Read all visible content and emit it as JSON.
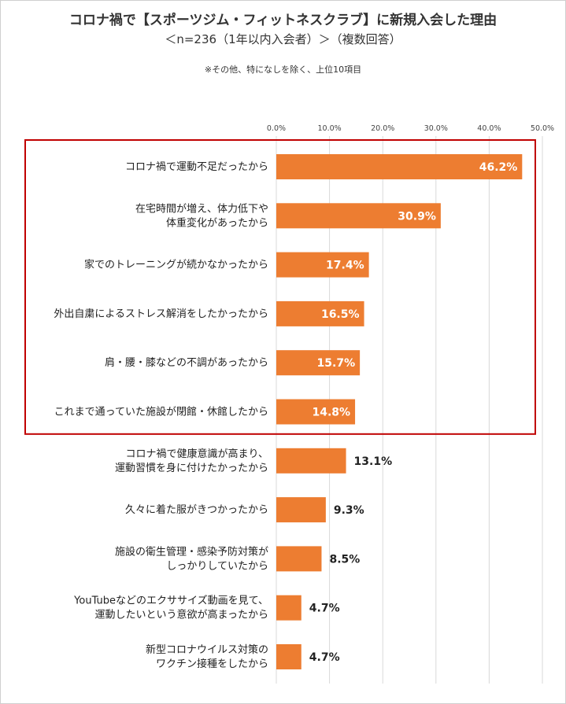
{
  "header": {
    "title": "コロナ禍で【スポーツジム・フィットネスクラブ】に新規入会した理由",
    "subtitle": "＜n=236（1年以内入会者）＞（複数回答）",
    "note": "※その他、特になしを除く、上位10項目"
  },
  "chart_data": {
    "type": "bar",
    "orientation": "horizontal",
    "categories": [
      [
        "コロナ禍で運動不足だったから"
      ],
      [
        "在宅時間が増え、体力低下や",
        "体重変化があったから"
      ],
      [
        "家でのトレーニングが続かなかったから"
      ],
      [
        "外出自粛によるストレス解消をしたかったから"
      ],
      [
        "肩・腰・膝などの不調があったから"
      ],
      [
        "これまで通っていた施設が閉館・休館したから"
      ],
      [
        "コロナ禍で健康意識が高まり、",
        "運動習慣を身に付けたかったから"
      ],
      [
        "久々に着た服がきつかったから"
      ],
      [
        "施設の衛生管理・感染予防対策が",
        "しっかりしていたから"
      ],
      [
        "YouTubeなどのエクササイズ動画を見て、",
        "運動したいという意欲が高まったから"
      ],
      [
        "新型コロナウイルス対策の",
        "ワクチン接種をしたから"
      ]
    ],
    "values": [
      46.2,
      30.9,
      17.4,
      16.5,
      15.7,
      14.8,
      13.1,
      9.3,
      8.5,
      4.7,
      4.7
    ],
    "value_labels": [
      "46.2%",
      "30.9%",
      "17.4%",
      "16.5%",
      "15.7%",
      "14.8%",
      "13.1%",
      "9.3%",
      "8.5%",
      "4.7%",
      "4.7%"
    ],
    "xticks": [
      "0.0%",
      "10.0%",
      "20.0%",
      "30.0%",
      "40.0%",
      "50.0%"
    ],
    "xlim": [
      0,
      50
    ],
    "highlight_top_n": 6,
    "colors": {
      "bar": "#ED7D31",
      "highlight_border": "#C00000",
      "grid": "#d9d9d9"
    },
    "grid": true
  }
}
